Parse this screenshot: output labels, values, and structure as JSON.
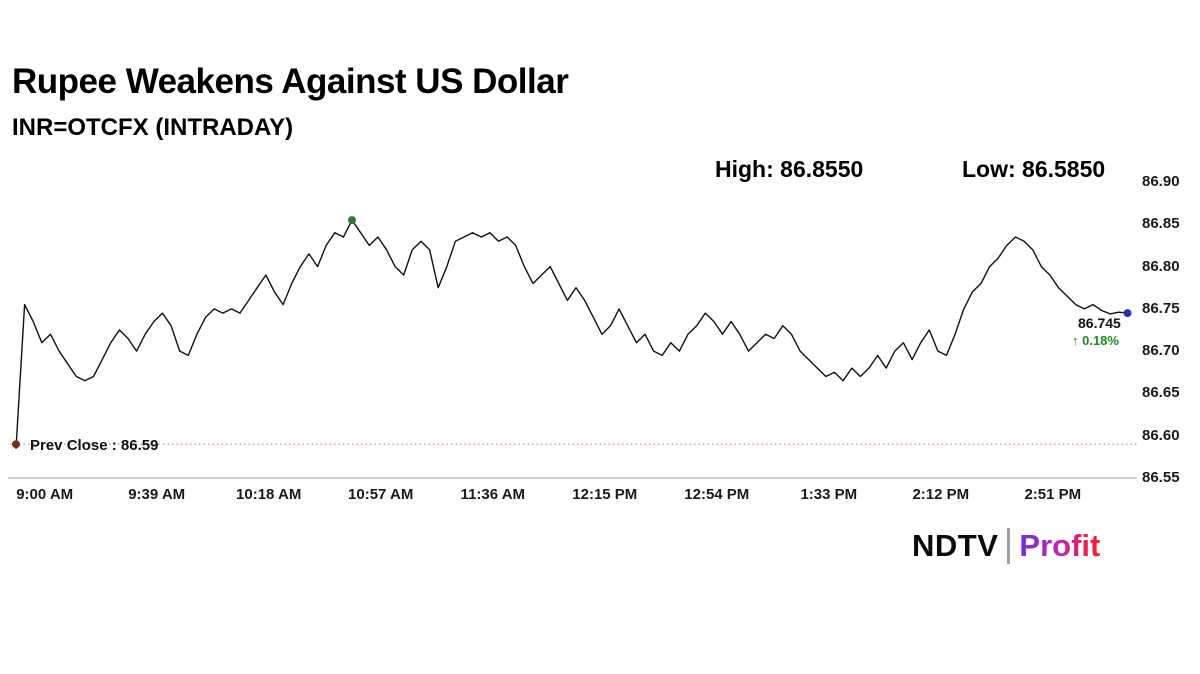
{
  "header": {
    "title": "Rupee Weakens Against US Dollar",
    "subtitle": "INR=OTCFX (INTRADAY)"
  },
  "stats": {
    "high_label": "High:",
    "high_value": "86.8550",
    "low_label": "Low:",
    "low_value": "86.5850"
  },
  "prev_close": {
    "label": "Prev Close :",
    "value": "86.59"
  },
  "last": {
    "price": "86.745",
    "change_text": "↑ 0.18%"
  },
  "logo": {
    "brand": "NDTV",
    "product": "Profit"
  },
  "colors": {
    "line": "#111111",
    "prev_close_line": "#cc6655",
    "prev_close_dot": "#7a2e0e",
    "high_dot": "#2d7a2d",
    "last_dot": "#2233bb",
    "change_green": "#1e8e1e",
    "axis": "#b0b0b0"
  },
  "chart_data": {
    "type": "line",
    "title": "Rupee Weakens Against US Dollar",
    "subtitle": "INR=OTCFX (INTRADAY)",
    "ylabel": "",
    "xlabel": "",
    "high": 86.855,
    "low": 86.585,
    "prev_close": 86.59,
    "last_price": 86.745,
    "change_pct": "+0.18%",
    "ylim": [
      86.55,
      86.9
    ],
    "y_ticks": [
      "86.90",
      "86.85",
      "86.80",
      "86.75",
      "86.70",
      "86.65",
      "86.60",
      "86.55"
    ],
    "x_tick_labels": [
      "9:00 AM",
      "9:39 AM",
      "10:18 AM",
      "10:57 AM",
      "11:36 AM",
      "12:15 PM",
      "12:54 PM",
      "1:33 PM",
      "2:12 PM",
      "2:51 PM"
    ],
    "x_tick_interval_minutes": 39,
    "first_tick_offset_minutes": 10,
    "step_minutes": 3,
    "legend": "off",
    "grid": "off",
    "series": [
      {
        "name": "INR=OTCFX",
        "values": [
          86.585,
          86.755,
          86.735,
          86.71,
          86.72,
          86.7,
          86.685,
          86.67,
          86.665,
          86.67,
          86.69,
          86.71,
          86.725,
          86.715,
          86.7,
          86.72,
          86.735,
          86.745,
          86.73,
          86.7,
          86.695,
          86.72,
          86.74,
          86.75,
          86.745,
          86.75,
          86.745,
          86.76,
          86.775,
          86.79,
          86.77,
          86.755,
          86.78,
          86.8,
          86.815,
          86.8,
          86.825,
          86.84,
          86.835,
          86.855,
          86.84,
          86.825,
          86.835,
          86.82,
          86.8,
          86.79,
          86.82,
          86.83,
          86.82,
          86.775,
          86.8,
          86.83,
          86.835,
          86.84,
          86.835,
          86.84,
          86.83,
          86.835,
          86.825,
          86.8,
          86.78,
          86.79,
          86.8,
          86.78,
          86.76,
          86.775,
          86.76,
          86.74,
          86.72,
          86.73,
          86.75,
          86.73,
          86.71,
          86.72,
          86.7,
          86.695,
          86.71,
          86.7,
          86.72,
          86.73,
          86.745,
          86.735,
          86.72,
          86.735,
          86.72,
          86.7,
          86.71,
          86.72,
          86.715,
          86.73,
          86.72,
          86.7,
          86.69,
          86.68,
          86.67,
          86.675,
          86.665,
          86.68,
          86.67,
          86.68,
          86.695,
          86.68,
          86.7,
          86.71,
          86.69,
          86.71,
          86.725,
          86.7,
          86.695,
          86.72,
          86.75,
          86.77,
          86.78,
          86.8,
          86.81,
          86.825,
          86.835,
          86.83,
          86.82,
          86.8,
          86.79,
          86.775,
          86.765,
          86.755,
          86.75,
          86.755,
          86.748,
          86.744,
          86.746,
          86.745
        ]
      }
    ]
  }
}
